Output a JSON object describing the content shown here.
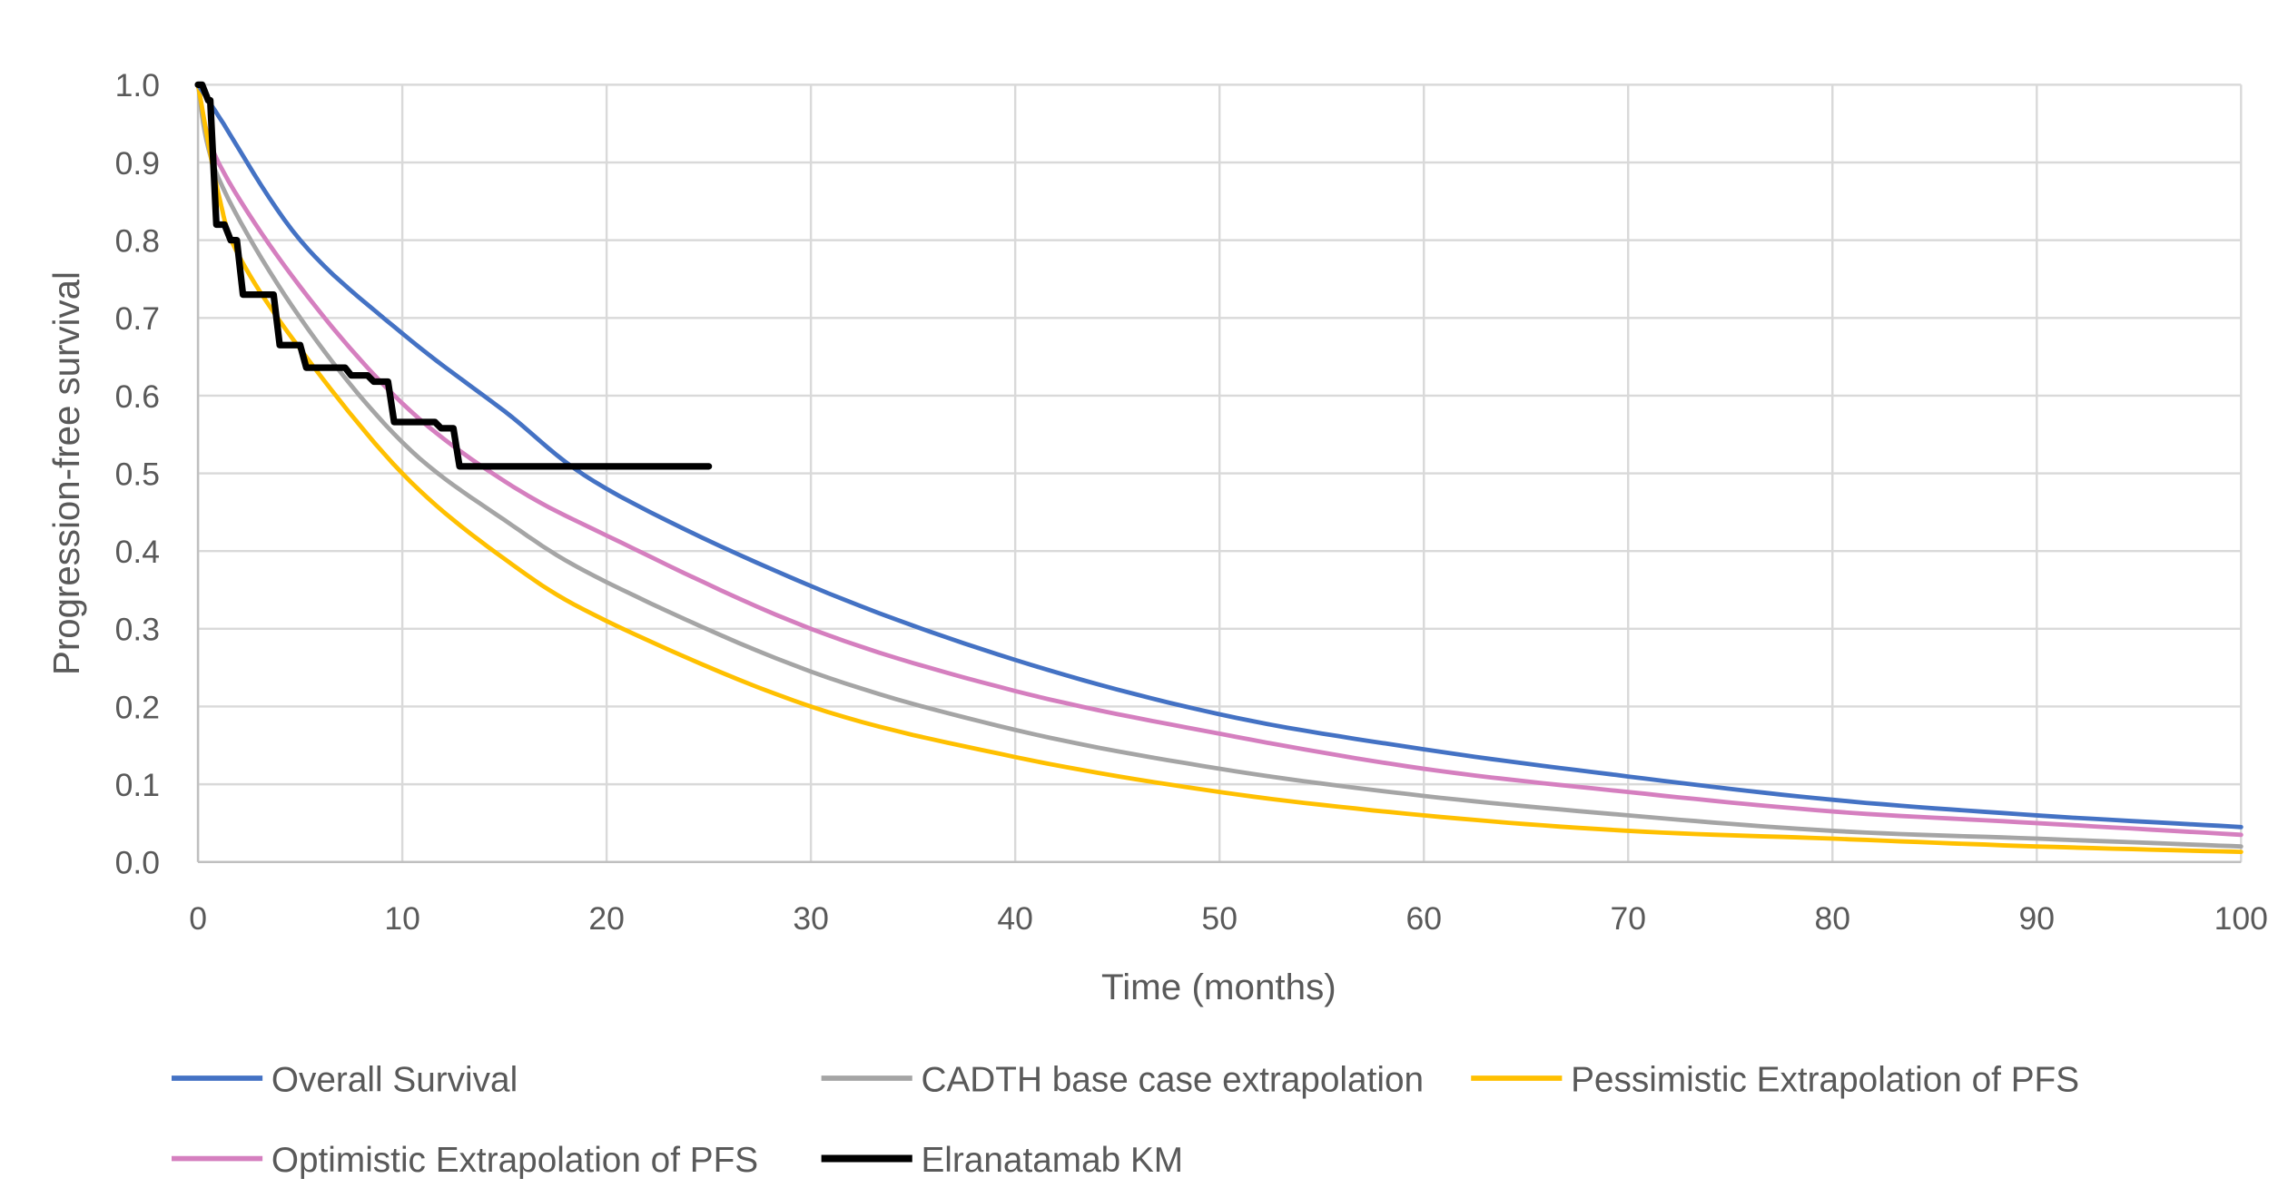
{
  "chart_data": {
    "type": "line",
    "title": "",
    "xlabel": "Time (months)",
    "ylabel": "Progression-free survival",
    "xlim": [
      0,
      100
    ],
    "ylim": [
      0,
      1
    ],
    "x_ticks": [
      "0",
      "10",
      "20",
      "30",
      "40",
      "50",
      "60",
      "70",
      "80",
      "90",
      "100"
    ],
    "y_ticks": [
      "0.0",
      "0.1",
      "0.2",
      "0.3",
      "0.4",
      "0.5",
      "0.6",
      "0.7",
      "0.8",
      "0.9",
      "1.0"
    ],
    "grid": true,
    "legend_position": "bottom",
    "series": [
      {
        "name": "Overall Survival",
        "color": "#4472C4",
        "step": false,
        "x": [
          0,
          1,
          5,
          10,
          15,
          20,
          30,
          40,
          50,
          60,
          70,
          80,
          90,
          100
        ],
        "y": [
          1.0,
          0.96,
          0.8,
          0.68,
          0.58,
          0.48,
          0.355,
          0.26,
          0.19,
          0.145,
          0.11,
          0.08,
          0.06,
          0.045
        ]
      },
      {
        "name": "CADTH base case extrapolation",
        "color": "#A5A5A5",
        "step": false,
        "x": [
          0,
          1,
          5,
          10,
          15,
          20,
          30,
          40,
          50,
          60,
          70,
          80,
          90,
          100
        ],
        "y": [
          1.0,
          0.88,
          0.7,
          0.54,
          0.44,
          0.36,
          0.245,
          0.17,
          0.12,
          0.085,
          0.06,
          0.04,
          0.03,
          0.02
        ]
      },
      {
        "name": "Pessimistic Extrapolation of PFS",
        "color": "#FFC000",
        "step": false,
        "x": [
          0,
          1,
          2,
          5,
          10,
          15,
          20,
          30,
          40,
          50,
          60,
          70,
          80,
          90,
          100
        ],
        "y": [
          1.0,
          0.86,
          0.78,
          0.66,
          0.5,
          0.39,
          0.31,
          0.2,
          0.135,
          0.09,
          0.06,
          0.04,
          0.03,
          0.02,
          0.013
        ]
      },
      {
        "name": "Optimistic Extrapolation of PFS",
        "color": "#D57FBF",
        "step": false,
        "x": [
          0,
          1,
          5,
          10,
          15,
          20,
          30,
          40,
          50,
          60,
          70,
          80,
          90,
          100
        ],
        "y": [
          1.0,
          0.9,
          0.74,
          0.59,
          0.49,
          0.42,
          0.3,
          0.22,
          0.165,
          0.12,
          0.09,
          0.065,
          0.05,
          0.035
        ]
      },
      {
        "name": "Elranatamab KM",
        "color": "#000000",
        "step": true,
        "x": [
          0,
          0.5,
          0.9,
          1.6,
          2.2,
          3.3,
          4.0,
          5.3,
          7.5,
          8.6,
          9.6,
          10.5,
          11.9,
          12.8,
          13.9,
          25
        ],
        "y": [
          1.0,
          0.98,
          0.82,
          0.8,
          0.73,
          0.73,
          0.665,
          0.636,
          0.626,
          0.618,
          0.566,
          0.566,
          0.558,
          0.509,
          0.509,
          0.509
        ]
      }
    ]
  }
}
